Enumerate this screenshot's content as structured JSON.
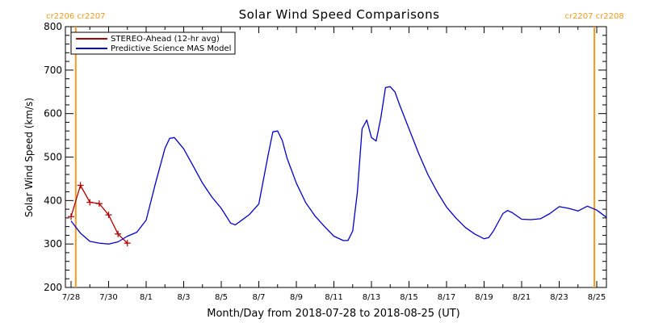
{
  "chart_data": {
    "type": "line",
    "title": "Solar Wind Speed Comparisons",
    "xlabel": "Month/Day from 2018-07-28 to 2018-08-25 (UT)",
    "ylabel": "Solar Wind Speed (km/s)",
    "ylim": [
      200,
      800
    ],
    "xlim": [
      "2018-07-28",
      "2018-08-25"
    ],
    "x_ticks": [
      "7/28",
      "7/30",
      "8/1",
      "8/3",
      "8/5",
      "8/7",
      "8/9",
      "8/11",
      "8/13",
      "8/15",
      "8/17",
      "8/19",
      "8/21",
      "8/23",
      "8/25"
    ],
    "y_ticks": [
      "200",
      "300",
      "400",
      "500",
      "600",
      "700",
      "800"
    ],
    "legend": {
      "placement": "top-left"
    },
    "rotation_markers": [
      {
        "date": "2018-07-28 06:00",
        "label": "cr2206 cr2207",
        "color": "#f59a1e"
      },
      {
        "date": "2018-08-24 21:00",
        "label": "cr2207 cr2208",
        "color": "#f59a1e"
      }
    ],
    "series": [
      {
        "name": "STEREO-Ahead (12-hr avg)",
        "color": "#b00000",
        "marker": "+",
        "points": [
          [
            "2018-07-28 00:00",
            363
          ],
          [
            "2018-07-28 12:00",
            435
          ],
          [
            "2018-07-29 00:00",
            396
          ],
          [
            "2018-07-29 12:00",
            393
          ],
          [
            "2018-07-30 00:00",
            367
          ],
          [
            "2018-07-30 12:00",
            323
          ],
          [
            "2018-07-31 00:00",
            302
          ]
        ]
      },
      {
        "name": "Predictive Science MAS Model",
        "color": "#0000cc",
        "points": [
          [
            "2018-07-28 00:00",
            353
          ],
          [
            "2018-07-28 12:00",
            325
          ],
          [
            "2018-07-29 00:00",
            306
          ],
          [
            "2018-07-29 12:00",
            302
          ],
          [
            "2018-07-30 00:00",
            300
          ],
          [
            "2018-07-30 12:00",
            305
          ],
          [
            "2018-07-31 00:00",
            318
          ],
          [
            "2018-07-31 12:00",
            327
          ],
          [
            "2018-08-01 00:00",
            355
          ],
          [
            "2018-08-01 12:00",
            440
          ],
          [
            "2018-08-02 00:00",
            520
          ],
          [
            "2018-08-02 06:00",
            543
          ],
          [
            "2018-08-02 12:00",
            545
          ],
          [
            "2018-08-03 00:00",
            519
          ],
          [
            "2018-08-03 12:00",
            480
          ],
          [
            "2018-08-04 00:00",
            440
          ],
          [
            "2018-08-04 12:00",
            408
          ],
          [
            "2018-08-05 00:00",
            382
          ],
          [
            "2018-08-05 12:00",
            348
          ],
          [
            "2018-08-05 18:00",
            344
          ],
          [
            "2018-08-06 00:00",
            352
          ],
          [
            "2018-08-06 12:00",
            368
          ],
          [
            "2018-08-07 00:00",
            392
          ],
          [
            "2018-08-07 12:00",
            505
          ],
          [
            "2018-08-07 18:00",
            558
          ],
          [
            "2018-08-08 00:00",
            560
          ],
          [
            "2018-08-08 06:00",
            538
          ],
          [
            "2018-08-08 12:00",
            498
          ],
          [
            "2018-08-09 00:00",
            440
          ],
          [
            "2018-08-09 12:00",
            395
          ],
          [
            "2018-08-10 00:00",
            364
          ],
          [
            "2018-08-10 12:00",
            340
          ],
          [
            "2018-08-11 00:00",
            318
          ],
          [
            "2018-08-11 12:00",
            308
          ],
          [
            "2018-08-11 18:00",
            308
          ],
          [
            "2018-08-12 00:00",
            330
          ],
          [
            "2018-08-12 06:00",
            420
          ],
          [
            "2018-08-12 12:00",
            565
          ],
          [
            "2018-08-12 18:00",
            585
          ],
          [
            "2018-08-13 00:00",
            545
          ],
          [
            "2018-08-13 06:00",
            537
          ],
          [
            "2018-08-13 12:00",
            590
          ],
          [
            "2018-08-13 18:00",
            660
          ],
          [
            "2018-08-14 00:00",
            662
          ],
          [
            "2018-08-14 06:00",
            650
          ],
          [
            "2018-08-14 12:00",
            620
          ],
          [
            "2018-08-15 00:00",
            565
          ],
          [
            "2018-08-15 12:00",
            510
          ],
          [
            "2018-08-16 00:00",
            460
          ],
          [
            "2018-08-16 12:00",
            420
          ],
          [
            "2018-08-17 00:00",
            385
          ],
          [
            "2018-08-17 12:00",
            360
          ],
          [
            "2018-08-18 00:00",
            338
          ],
          [
            "2018-08-18 12:00",
            323
          ],
          [
            "2018-08-19 00:00",
            312
          ],
          [
            "2018-08-19 06:00",
            315
          ],
          [
            "2018-08-19 12:00",
            330
          ],
          [
            "2018-08-20 00:00",
            370
          ],
          [
            "2018-08-20 06:00",
            377
          ],
          [
            "2018-08-20 12:00",
            372
          ],
          [
            "2018-08-21 00:00",
            357
          ],
          [
            "2018-08-21 12:00",
            356
          ],
          [
            "2018-08-22 00:00",
            358
          ],
          [
            "2018-08-22 12:00",
            370
          ],
          [
            "2018-08-23 00:00",
            386
          ],
          [
            "2018-08-23 12:00",
            382
          ],
          [
            "2018-08-24 00:00",
            376
          ],
          [
            "2018-08-24 12:00",
            387
          ],
          [
            "2018-08-25 00:00",
            378
          ],
          [
            "2018-08-25 12:00",
            362
          ],
          [
            "2018-08-26 00:00",
            340
          ]
        ]
      }
    ]
  }
}
